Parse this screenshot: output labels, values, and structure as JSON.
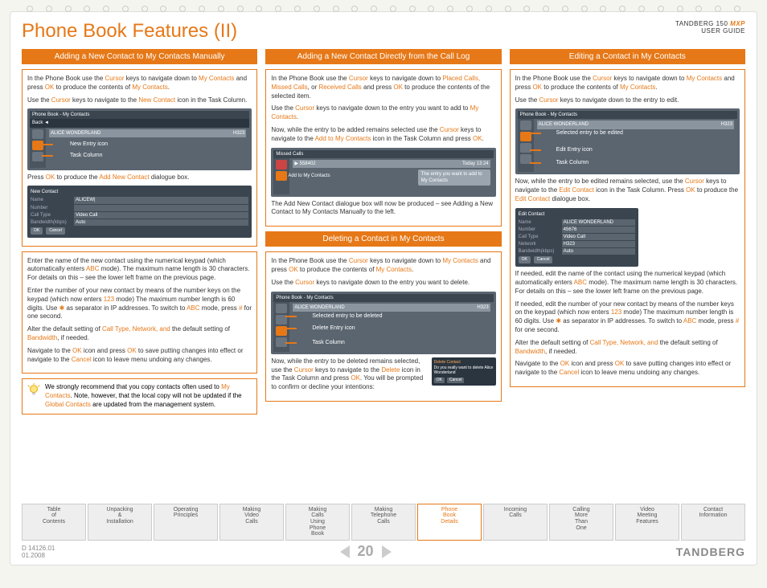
{
  "colors": {
    "accent": "#e67817",
    "section_bg": "#e67817",
    "screenshot_bg": "#5a6570",
    "text": "#333"
  },
  "header": {
    "title": "Phone Book Features (II)",
    "product": "TANDBERG 150",
    "mxp": "MXP",
    "subtitle": "USER GUIDE"
  },
  "col1": {
    "header": "Adding a New Contact to My Contacts Manually",
    "p1a": "In the Phone Book use the ",
    "p1b": "Cursor",
    "p1c": " keys to navigate down to ",
    "p1d": "My Contacts",
    "p1e": " and press ",
    "p1f": "OK",
    "p1g": " to produce the contents of ",
    "p1h": "My Contacts",
    "p1i": ".",
    "p2a": "Use the ",
    "p2b": "Cursor",
    "p2c": " keys to navigate to the ",
    "p2d": "New Contact",
    "p2e": " icon in the Task Column.",
    "sc1": {
      "title": "Phone Book - My Contacts",
      "back": "Back ◄",
      "entry": "ALICE WONDERLAND",
      "proto": "H323",
      "label1": "New Entry icon",
      "label2": "Task Column"
    },
    "p3a": "Press ",
    "p3b": "OK",
    "p3c": " to produce the ",
    "p3d": "Add New Contact",
    "p3e": " dialogue box.",
    "dialog": {
      "title": "New Contact",
      "name_l": "Name",
      "name_v": "ALICEW|",
      "num_l": "Number",
      "ct_l": "Call Type",
      "ct_v": "Video Call",
      "bw_l": "Bandwidth(kbps)",
      "bw_v": "Auto",
      "ok": "OK",
      "cancel": "Cancel"
    },
    "p4a": "Enter the name of the new contact using the numerical keypad (which automatically enters ",
    "p4b": "ABC",
    "p4c": " mode). The maximum name length is 30 characters. For details on this – see the lower left frame on the previous page.",
    "p5a": "Enter the number of your new contact by means of the number keys on the keypad (which now enters ",
    "p5b": "123",
    "p5c": " mode)  The maximum number length is 60 digits. Use ",
    "p5d": "✱",
    "p5e": " as separator in IP addresses. To switch to ",
    "p5f": "ABC",
    "p5g": " mode, press ",
    "p5h": "#",
    "p5i": " for one second.",
    "p6a": "Alter the default setting of ",
    "p6b": "Call Type, Network, and",
    "p6c": " the default setting of ",
    "p6d": "Bandwidth",
    "p6e": ", if needed.",
    "p7a": "Navigate to the ",
    "p7b": "OK",
    "p7c": " icon and press ",
    "p7d": "OK",
    "p7e": " to save putting changes into effect or navigate to the ",
    "p7f": "Cancel",
    "p7g": " icon to leave menu undoing any changes.",
    "tip_a": "We strongly recommend that you copy contacts often used to ",
    "tip_b": "My Contacts",
    "tip_c": ". Note, however, that the local copy will not be updated if the ",
    "tip_d": "Global Contacts",
    "tip_e": " are updated from the management system."
  },
  "col2": {
    "header1": "Adding a New Contact Directly from the Call Log",
    "p1a": "In the Phone Book use the ",
    "p1b": "Cursor",
    "p1c": " keys to navigate down to ",
    "p1d": "Placed Calls, Missed Calls",
    "p1e": ", or ",
    "p1f": "Received Calls",
    "p1g": " and press ",
    "p1h": "OK",
    "p1i": " to produce the contents of the selected item.",
    "p2a": "Use the ",
    "p2b": "Cursor",
    "p2c": " keys to navigate down to the entry you want to add to ",
    "p2d": "My Contacts",
    "p2e": ".",
    "p3a": "Now, while the entry to be added remains selected use the ",
    "p3b": "Cursor",
    "p3c": " keys to navigate to the ",
    "p3d": "Add to My Contacts",
    "p3e": " icon in the Task Column and press ",
    "p3f": "OK",
    "p3g": ".",
    "sc1": {
      "title": "Missed Calls",
      "num": "558402",
      "time": "Today 13:24",
      "callout1": "The entry you want to add to My Contacts",
      "callout2": "Add to My Contacts"
    },
    "p4": "The Add New Contact dialogue box will now be produced – see Adding a New Contact to My Contacts Manually to the left.",
    "header2": "Deleting a Contact in My Contacts",
    "p5a": "In the Phone Book use the ",
    "p5b": "Cursor",
    "p5c": " keys to navigate down to ",
    "p5d": "My Contacts",
    "p5e": " and press ",
    "p5f": "OK",
    "p5g": " to produce the contents of ",
    "p5h": "My Contacts",
    "p5i": ".",
    "p6a": "Use the ",
    "p6b": "Cursor",
    "p6c": " keys to navigate down to the entry you want to delete.",
    "sc2": {
      "title": "Phone Book - My Contacts",
      "entry": "ALICE WONDERLAND",
      "proto": "H323",
      "l1": "Selected entry to be deleted",
      "l2": "Delete Entry icon",
      "l3": "Task Column"
    },
    "p7a": "Now, while the entry to be deleted remains selected, use the ",
    "p7b": "Cursor",
    "p7c": " keys to navigate to the ",
    "p7d": "Delete",
    "p7e": " icon in the Task Column and press ",
    "p7f": "OK",
    "p7g": ". You will be prompted to confirm or decline your intentions:",
    "confirm": {
      "title": "Delete Contact",
      "msg": "Do you really want to delete Alice Wonderland",
      "ok": "OK",
      "cancel": "Cancel"
    }
  },
  "col3": {
    "header": "Editing a Contact in My Contacts",
    "p1a": "In the Phone Book use the ",
    "p1b": "Cursor",
    "p1c": " keys to navigate down to ",
    "p1d": "My Contacts",
    "p1e": " and press ",
    "p1f": "OK",
    "p1g": " to produce the contents of ",
    "p1h": "My Contacts",
    "p1i": ".",
    "p2a": "Use the ",
    "p2b": "Cursor",
    "p2c": " keys to navigate down to the entry to edit.",
    "sc1": {
      "title": "Phone Book - My Contacts",
      "entry": "ALICE WONDERLAND",
      "proto": "H323",
      "l1": "Selected entry to be edited",
      "l2": "Edit Entry icon",
      "l3": "Task Column"
    },
    "p3a": "Now, while the entry to be edited remains selected, use the ",
    "p3b": "Cursor",
    "p3c": " keys to navigate to the ",
    "p3d": "Edit Contact",
    "p3e": " icon in the Task Column. Press ",
    "p3f": "OK",
    "p3g": " to produce the ",
    "p3h": "Edit Contact",
    "p3i": " dialogue box.",
    "dialog": {
      "title": "Edit Contact",
      "name_l": "Name",
      "name_v": "ALICE WONDERLAND",
      "num_l": "Number",
      "num_v": "45676",
      "ct_l": "Call Type",
      "ct_v": "Video Call",
      "net_l": "Network",
      "net_v": "H323",
      "bw_l": "Bandwidth(kbps)",
      "bw_v": "Auto",
      "ok": "OK",
      "cancel": "Cancel"
    },
    "p4a": "If needed, edit the name of the contact using the numerical keypad (which automatically enters ",
    "p4b": "ABC",
    "p4c": " mode). The maximum name length is 30 characters. For details on this – see the lower left frame on the previous page.",
    "p5a": "If needed, edit the number of your new contact by means of the number keys on the keypad (which now enters ",
    "p5b": "123",
    "p5c": " mode)  The maximum number length is 60 digits. Use ",
    "p5d": "✱",
    "p5e": " as separator in IP addresses. To switch to ",
    "p5f": "ABC",
    "p5g": " mode, press ",
    "p5h": "#",
    "p5i": " for one second.",
    "p6a": "Alter the default setting of ",
    "p6b": "Call Type, Network, and",
    "p6c": " the default setting of ",
    "p6d": "Bandwidth",
    "p6e": ", if needed.",
    "p7a": "Navigate to the ",
    "p7b": "OK",
    "p7c": " icon and press ",
    "p7d": "OK",
    "p7e": " to save putting changes into effect or navigate to the ",
    "p7f": "Cancel",
    "p7g": " icon to leave menu undoing any changes."
  },
  "nav": {
    "items": [
      "Table of Contents",
      "Unpacking & Installation",
      "Operating Principles",
      "Making Video Calls",
      "Making Calls Using Phone Book",
      "Making Telephone Calls",
      "Phone Book Details",
      "Incoming Calls",
      "Calling More Than One",
      "Video Meeting Features",
      "Contact Information"
    ],
    "active_index": 6
  },
  "footer": {
    "doc": "D 14126.01",
    "date": "01.2008",
    "page": "20",
    "logo": "TANDBERG"
  }
}
